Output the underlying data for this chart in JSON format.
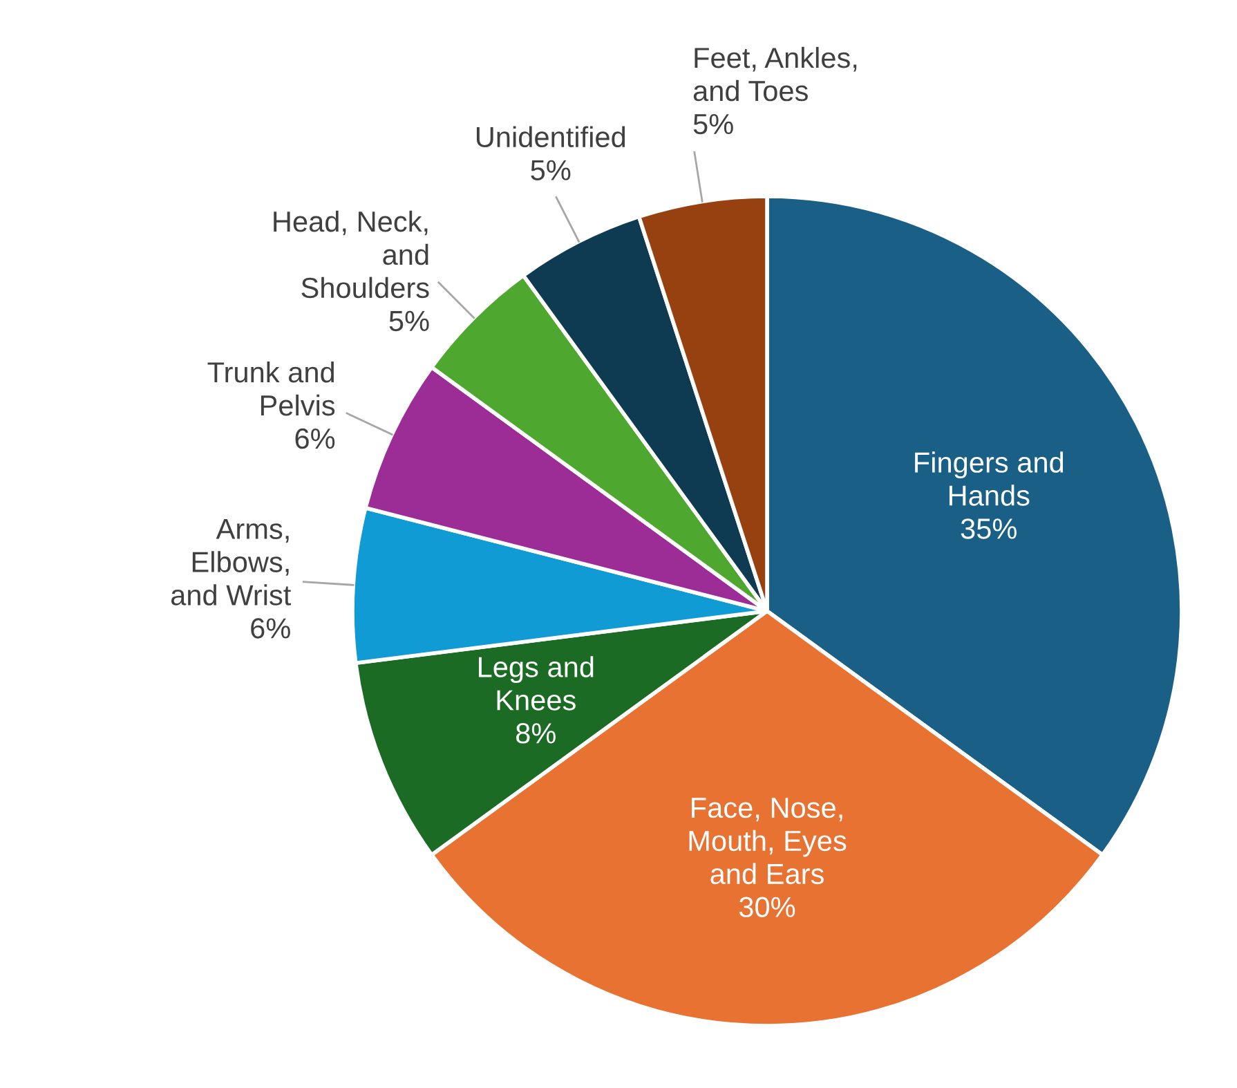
{
  "chart_data": {
    "type": "pie",
    "categories": [
      "Fingers and\nHands",
      "Face, Nose,\nMouth, Eyes\nand Ears",
      "Legs and\nKnees",
      "Arms,\nElbows,\nand Wrist",
      "Trunk and\nPelvis",
      "Head, Neck,\nand\nShoulders",
      "Unidentified",
      "Feet, Ankles,\nand Toes"
    ],
    "values": [
      35,
      30,
      8,
      6,
      6,
      5,
      5,
      5
    ],
    "value_labels": [
      "35%",
      "30%",
      "8%",
      "6%",
      "6%",
      "5%",
      "5%",
      "5%"
    ],
    "colors": [
      "#1a5f86",
      "#e87232",
      "#1b6b25",
      "#119bd4",
      "#9c2d97",
      "#4ea72e",
      "#0e3a52",
      "#974010"
    ],
    "legend": false
  }
}
